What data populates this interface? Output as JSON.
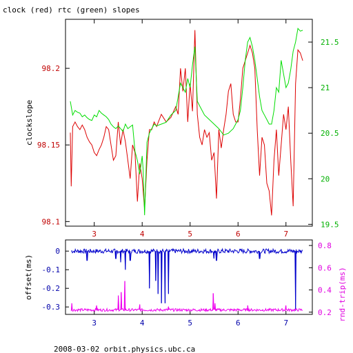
{
  "title": "clock (red) rtc (green) slopes",
  "footer": "2008-03-02  orbit.physics.ubc.ca",
  "colors": {
    "clock": "#dd0000",
    "rtc": "#00dd00",
    "offset": "#0000cc",
    "rndtrip": "#ee00ee",
    "axis": "#000000"
  },
  "chart_data": [
    {
      "type": "line",
      "title": "clock (red) rtc (green) slopes",
      "ylabel": "clockslope",
      "y2label": "",
      "xlim": [
        2.4,
        7.55
      ],
      "ylim": [
        98.097,
        98.232
      ],
      "y2lim": [
        19.48,
        21.75
      ],
      "x_ticks": [
        "3",
        "4",
        "5",
        "6",
        "7"
      ],
      "y_ticks": [
        "98.1",
        "98.15",
        "98.2"
      ],
      "y2_ticks": [
        "19.5",
        "20",
        "20.5",
        "21",
        "21.5"
      ],
      "series": [
        {
          "name": "clock",
          "axis": "left",
          "x": [
            2.5,
            2.52,
            2.55,
            2.6,
            2.65,
            2.7,
            2.75,
            2.8,
            2.85,
            2.9,
            2.95,
            3.0,
            3.05,
            3.1,
            3.15,
            3.2,
            3.25,
            3.3,
            3.35,
            3.4,
            3.45,
            3.5,
            3.55,
            3.6,
            3.65,
            3.7,
            3.75,
            3.8,
            3.85,
            3.9,
            3.95,
            4.0,
            4.05,
            4.1,
            4.15,
            4.2,
            4.25,
            4.3,
            4.4,
            4.5,
            4.6,
            4.7,
            4.75,
            4.8,
            4.85,
            4.9,
            4.95,
            5.0,
            5.05,
            5.1,
            5.15,
            5.2,
            5.25,
            5.3,
            5.35,
            5.4,
            5.45,
            5.5,
            5.55,
            5.6,
            5.65,
            5.7,
            5.75,
            5.8,
            5.85,
            5.9,
            5.95,
            6.0,
            6.05,
            6.1,
            6.15,
            6.2,
            6.25,
            6.3,
            6.35,
            6.4,
            6.45,
            6.5,
            6.55,
            6.6,
            6.65,
            6.7,
            6.75,
            6.8,
            6.85,
            6.9,
            6.95,
            7.0,
            7.05,
            7.1,
            7.15,
            7.2,
            7.25,
            7.3,
            7.35
          ],
          "y": [
            98.158,
            98.123,
            98.162,
            98.165,
            98.162,
            98.16,
            98.163,
            98.16,
            98.155,
            98.152,
            98.15,
            98.145,
            98.143,
            98.147,
            98.15,
            98.155,
            98.162,
            98.16,
            98.15,
            98.14,
            98.143,
            98.165,
            98.15,
            98.16,
            98.152,
            98.14,
            98.128,
            98.15,
            98.145,
            98.113,
            98.138,
            98.128,
            98.108,
            98.14,
            98.16,
            98.16,
            98.165,
            98.162,
            98.17,
            98.165,
            98.168,
            98.175,
            98.17,
            98.2,
            98.185,
            98.2,
            98.165,
            98.19,
            98.172,
            98.225,
            98.17,
            98.155,
            98.15,
            98.16,
            98.155,
            98.158,
            98.14,
            98.145,
            98.115,
            98.16,
            98.148,
            98.16,
            98.17,
            98.185,
            98.19,
            98.17,
            98.165,
            98.165,
            98.18,
            98.2,
            98.205,
            98.21,
            98.215,
            98.21,
            98.2,
            98.16,
            98.13,
            98.155,
            98.15,
            98.125,
            98.12,
            98.104,
            98.14,
            98.16,
            98.13,
            98.15,
            98.17,
            98.16,
            98.175,
            98.14,
            98.11,
            98.19,
            98.212,
            98.21,
            98.205
          ],
          "color": "#dd0000"
        },
        {
          "name": "rtc",
          "axis": "right",
          "x": [
            2.5,
            2.55,
            2.6,
            2.65,
            2.7,
            2.75,
            2.8,
            2.85,
            2.9,
            2.95,
            3.0,
            3.05,
            3.1,
            3.15,
            3.2,
            3.25,
            3.3,
            3.35,
            3.4,
            3.45,
            3.5,
            3.55,
            3.6,
            3.65,
            3.7,
            3.75,
            3.8,
            3.85,
            3.9,
            3.95,
            4.0,
            4.02,
            4.05,
            4.1,
            4.15,
            4.2,
            4.25,
            4.3,
            4.4,
            4.5,
            4.6,
            4.7,
            4.75,
            4.8,
            4.85,
            4.9,
            4.95,
            5.0,
            5.05,
            5.1,
            5.15,
            5.2,
            5.3,
            5.4,
            5.5,
            5.6,
            5.7,
            5.8,
            5.9,
            6.0,
            6.05,
            6.1,
            6.15,
            6.2,
            6.25,
            6.3,
            6.35,
            6.4,
            6.45,
            6.5,
            6.55,
            6.6,
            6.65,
            6.7,
            6.75,
            6.8,
            6.85,
            6.9,
            6.95,
            7.0,
            7.05,
            7.1,
            7.15,
            7.2,
            7.25,
            7.3,
            7.35
          ],
          "y": [
            20.85,
            20.7,
            20.75,
            20.73,
            20.72,
            20.68,
            20.7,
            20.67,
            20.65,
            20.64,
            20.7,
            20.68,
            20.75,
            20.72,
            20.7,
            20.68,
            20.65,
            20.6,
            20.57,
            20.55,
            20.58,
            20.55,
            20.52,
            20.6,
            20.55,
            20.57,
            20.59,
            20.3,
            20.2,
            20.05,
            20.25,
            20.1,
            19.6,
            20.4,
            20.5,
            20.55,
            20.6,
            20.58,
            20.6,
            20.62,
            20.7,
            20.75,
            20.9,
            21.05,
            21.0,
            20.95,
            21.1,
            21.0,
            21.25,
            21.45,
            20.85,
            20.8,
            20.7,
            20.65,
            20.6,
            20.55,
            20.48,
            20.5,
            20.55,
            20.65,
            20.75,
            21.0,
            21.3,
            21.5,
            21.55,
            21.45,
            21.3,
            21.1,
            20.9,
            20.75,
            20.7,
            20.65,
            20.6,
            20.6,
            20.75,
            21.0,
            20.95,
            21.3,
            21.15,
            21.0,
            21.05,
            21.2,
            21.4,
            21.5,
            21.65,
            21.62,
            21.63
          ],
          "color": "#00dd00"
        }
      ]
    },
    {
      "type": "line",
      "ylabel": "offset(ms)",
      "y2label": "rnd-trip(ms)",
      "xlim": [
        2.4,
        7.55
      ],
      "ylim": [
        -0.34,
        0.06
      ],
      "y2lim": [
        0.18,
        0.85
      ],
      "x_ticks": [
        "3",
        "4",
        "5",
        "6",
        "7"
      ],
      "y_ticks": [
        "0",
        "-0.1",
        "-0.2",
        "-0.3"
      ],
      "y2_ticks": [
        "0.8",
        "0.6",
        "0.4",
        "0.2"
      ],
      "series": [
        {
          "name": "offset",
          "axis": "left",
          "baseline": 0,
          "spikes": [
            {
              "x": 2.85,
              "y": -0.05
            },
            {
              "x": 3.45,
              "y": -0.04
            },
            {
              "x": 3.55,
              "y": -0.06
            },
            {
              "x": 3.65,
              "y": -0.1
            },
            {
              "x": 3.75,
              "y": -0.05
            },
            {
              "x": 4.15,
              "y": -0.2
            },
            {
              "x": 4.28,
              "y": -0.16
            },
            {
              "x": 4.33,
              "y": -0.23
            },
            {
              "x": 4.4,
              "y": -0.28
            },
            {
              "x": 4.48,
              "y": -0.28
            },
            {
              "x": 4.55,
              "y": -0.23
            },
            {
              "x": 5.5,
              "y": -0.04
            },
            {
              "x": 5.55,
              "y": -0.05
            },
            {
              "x": 6.45,
              "y": -0.04
            },
            {
              "x": 7.2,
              "y": -0.32
            }
          ],
          "color": "#0000cc"
        },
        {
          "name": "rnd-trip",
          "axis": "right",
          "baseline": 0.22,
          "spikes": [
            {
              "x": 2.53,
              "y": 0.28
            },
            {
              "x": 3.05,
              "y": 0.26
            },
            {
              "x": 3.5,
              "y": 0.35
            },
            {
              "x": 3.56,
              "y": 0.38
            },
            {
              "x": 3.64,
              "y": 0.48
            },
            {
              "x": 3.95,
              "y": 0.27
            },
            {
              "x": 4.55,
              "y": 0.25
            },
            {
              "x": 5.48,
              "y": 0.37
            },
            {
              "x": 5.52,
              "y": 0.28
            },
            {
              "x": 6.2,
              "y": 0.26
            },
            {
              "x": 7.0,
              "y": 0.26
            }
          ],
          "color": "#ee00ee"
        }
      ]
    }
  ]
}
